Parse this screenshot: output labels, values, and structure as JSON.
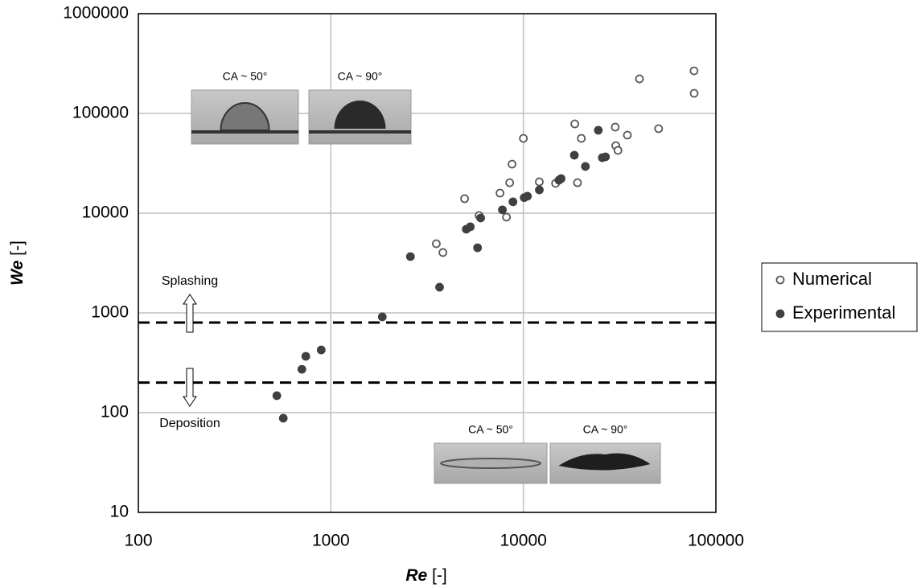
{
  "chart_data": {
    "type": "scatter",
    "x_label": {
      "symbol": "Re",
      "unit": "[-]"
    },
    "y_label": {
      "symbol": "We",
      "unit": "[-]"
    },
    "log_x": true,
    "log_y": true,
    "grid": true,
    "xlim": [
      100,
      100000
    ],
    "xticks": [
      100,
      1000,
      10000,
      100000
    ],
    "ylim": [
      10,
      1000000
    ],
    "yticks": [
      10,
      100,
      1000,
      10000,
      100000,
      1000000
    ],
    "legend": "right",
    "series": [
      {
        "name": "Numerical",
        "color": "#595959",
        "filled": false,
        "x": [
          77100,
          77000,
          40100,
          50400,
          34700,
          30000,
          30200,
          31000,
          18500,
          20000,
          19100,
          14700,
          12100,
          10000,
          8730,
          8490,
          7560,
          8170,
          5890,
          4950,
          3530,
          3820
        ],
        "values": [
          159000,
          267000,
          222000,
          70300,
          60600,
          72900,
          47500,
          42600,
          78500,
          56200,
          20200,
          19900,
          20600,
          56200,
          31000,
          20200,
          15900,
          9120,
          9460,
          13970,
          4940,
          4030
        ]
      },
      {
        "name": "Experimental",
        "color": "#404040",
        "filled": true,
        "x": [
          24500,
          18400,
          21000,
          25700,
          26700,
          15700,
          15300,
          12100,
          10500,
          10100,
          8830,
          7780,
          6000,
          5300,
          5050,
          5780,
          2590,
          3670,
          1850,
          891,
          741,
          707,
          524,
          566
        ],
        "values": [
          67800,
          38100,
          29400,
          36000,
          36700,
          22200,
          21400,
          17100,
          14800,
          14300,
          13000,
          10800,
          8950,
          7300,
          6900,
          4500,
          3670,
          1810,
          912,
          425,
          367,
          272,
          148,
          88
        ]
      }
    ],
    "thresholds": [
      800,
      200
    ],
    "annotations": [
      "Splashing",
      "Deposition"
    ],
    "inset_labels": [
      "CA ~ 50°",
      "CA ~ 90°",
      "CA ~ 50°",
      "CA ~ 90°"
    ]
  }
}
